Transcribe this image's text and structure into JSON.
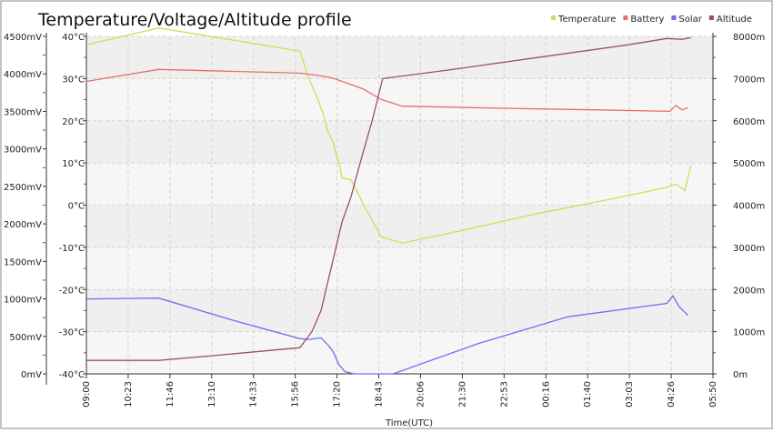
{
  "chart_data": {
    "type": "line",
    "title": "Temperature/Voltage/Altitude profile",
    "xlabel": "Time(UTC)",
    "x_ticks": [
      "09:00",
      "10:23",
      "11:46",
      "13:10",
      "14:33",
      "15:56",
      "17:20",
      "18:43",
      "20:06",
      "21:30",
      "22:53",
      "00:16",
      "01:40",
      "03:03",
      "04:26",
      "05:50"
    ],
    "x_range_hours": [
      0,
      20.833
    ],
    "temp_axis": {
      "ticks": [
        "40°C",
        "30°C",
        "20°C",
        "10°C",
        "0°C",
        "-10°C",
        "-20°C",
        "-30°C",
        "-40°C"
      ],
      "range": [
        -40,
        40
      ]
    },
    "voltage_axis": {
      "ticks": [
        "4500mV",
        "4000mV",
        "3500mV",
        "3000mV",
        "2500mV",
        "2000mV",
        "1500mV",
        "1000mV",
        "500mV",
        "0mV"
      ],
      "range": [
        0,
        4500
      ]
    },
    "altitude_axis": {
      "ticks": [
        "8000m",
        "7000m",
        "6000m",
        "5000m",
        "4000m",
        "3000m",
        "2000m",
        "1000m",
        "0m"
      ],
      "range": [
        0,
        8000
      ]
    },
    "grid": true,
    "legend_position": "top-right",
    "series": [
      {
        "name": "Temperature",
        "axis": "temp",
        "color": "#c9e05a",
        "points": [
          [
            0,
            38
          ],
          [
            2.4,
            42
          ],
          [
            7.1,
            36.5
          ],
          [
            7.4,
            30
          ],
          [
            7.7,
            25
          ],
          [
            7.9,
            21
          ],
          [
            8.0,
            18
          ],
          [
            8.2,
            15
          ],
          [
            8.3,
            12
          ],
          [
            8.4,
            10
          ],
          [
            8.5,
            6.5
          ],
          [
            8.8,
            6
          ],
          [
            9.3,
            -1
          ],
          [
            9.8,
            -7.5
          ],
          [
            10.5,
            -9
          ],
          [
            12.5,
            -6
          ],
          [
            15,
            -2
          ],
          [
            17.5,
            1.5
          ],
          [
            19.3,
            4.2
          ],
          [
            19.6,
            5
          ],
          [
            19.9,
            3.5
          ],
          [
            20.1,
            9.5
          ]
        ]
      },
      {
        "name": "Battery",
        "axis": "voltage",
        "color": "#e86e6e",
        "points": [
          [
            0,
            3900
          ],
          [
            2.4,
            4060
          ],
          [
            7.1,
            4010
          ],
          [
            7.5,
            3990
          ],
          [
            8.0,
            3960
          ],
          [
            8.3,
            3930
          ],
          [
            8.5,
            3900
          ],
          [
            9.2,
            3800
          ],
          [
            9.8,
            3660
          ],
          [
            10.5,
            3570
          ],
          [
            14,
            3540
          ],
          [
            17,
            3520
          ],
          [
            19.4,
            3500
          ],
          [
            19.6,
            3580
          ],
          [
            19.8,
            3520
          ],
          [
            20.0,
            3550
          ]
        ]
      },
      {
        "name": "Solar",
        "axis": "voltage",
        "color": "#6f6ff0",
        "points": [
          [
            0,
            1000
          ],
          [
            2.4,
            1010
          ],
          [
            5,
            700
          ],
          [
            7.1,
            470
          ],
          [
            7.4,
            460
          ],
          [
            7.8,
            480
          ],
          [
            8.0,
            400
          ],
          [
            8.2,
            300
          ],
          [
            8.4,
            120
          ],
          [
            8.6,
            30
          ],
          [
            8.9,
            0
          ],
          [
            9.5,
            0
          ],
          [
            10.2,
            0
          ],
          [
            13,
            400
          ],
          [
            16,
            760
          ],
          [
            19.3,
            940
          ],
          [
            19.5,
            1040
          ],
          [
            19.7,
            900
          ],
          [
            20.0,
            780
          ]
        ]
      },
      {
        "name": "Altitude",
        "axis": "altitude",
        "color": "#9e5060",
        "points": [
          [
            0,
            320
          ],
          [
            2.4,
            320
          ],
          [
            4.5,
            450
          ],
          [
            7.1,
            620
          ],
          [
            7.5,
            1000
          ],
          [
            7.8,
            1500
          ],
          [
            8.0,
            2100
          ],
          [
            8.2,
            2700
          ],
          [
            8.5,
            3600
          ],
          [
            8.8,
            4200
          ],
          [
            9.1,
            5000
          ],
          [
            9.5,
            6000
          ],
          [
            9.85,
            7000
          ],
          [
            12,
            7200
          ],
          [
            15,
            7500
          ],
          [
            18,
            7800
          ],
          [
            19.3,
            7950
          ],
          [
            19.8,
            7930
          ],
          [
            20.1,
            7970
          ]
        ]
      }
    ]
  }
}
